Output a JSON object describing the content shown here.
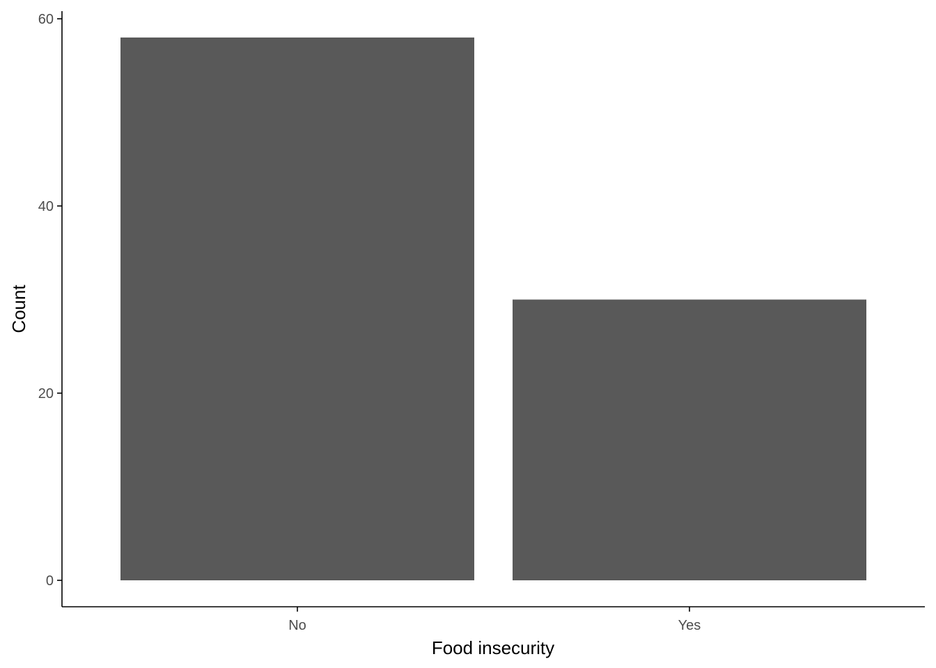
{
  "chart_data": {
    "type": "bar",
    "categories": [
      "No",
      "Yes"
    ],
    "values": [
      58,
      30
    ],
    "title": "",
    "xlabel": "Food insecurity",
    "ylabel": "Count",
    "ylim": [
      0,
      61
    ],
    "yticks": [
      0,
      20,
      40,
      60
    ],
    "ytick_labels": [
      "0",
      "20",
      "40",
      "60"
    ],
    "grid": false,
    "bar_color": "#595959",
    "axis_color": "#000000",
    "tick_label_color": "#4d4d4d"
  }
}
